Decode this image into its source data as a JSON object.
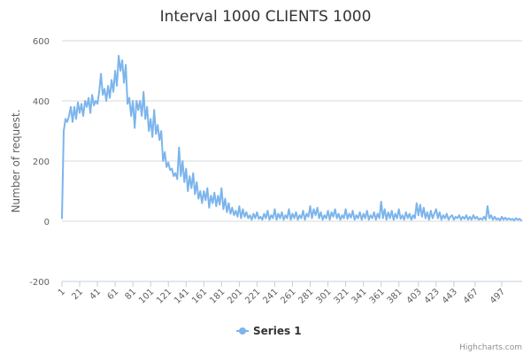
{
  "chart_data": {
    "type": "line",
    "title": "Interval 1000 CLIENTS 1000",
    "ylabel": "Number of request.",
    "xlabel": "",
    "ylim": [
      -200,
      600
    ],
    "yticks": [
      -200,
      0,
      200,
      400,
      600
    ],
    "xlim": [
      1,
      520
    ],
    "xticks": [
      1,
      21,
      41,
      61,
      81,
      101,
      121,
      141,
      161,
      181,
      201,
      221,
      241,
      261,
      281,
      301,
      321,
      341,
      361,
      381,
      403,
      423,
      443,
      467,
      497
    ],
    "grid": true,
    "legend_position": "bottom",
    "series": [
      {
        "name": "Series 1",
        "color": "#7cb5ec",
        "points": [
          [
            1,
            10
          ],
          [
            3,
            300
          ],
          [
            5,
            340
          ],
          [
            7,
            330
          ],
          [
            9,
            350
          ],
          [
            11,
            380
          ],
          [
            13,
            330
          ],
          [
            15,
            380
          ],
          [
            17,
            340
          ],
          [
            19,
            395
          ],
          [
            21,
            360
          ],
          [
            23,
            390
          ],
          [
            25,
            350
          ],
          [
            27,
            400
          ],
          [
            29,
            380
          ],
          [
            31,
            410
          ],
          [
            33,
            360
          ],
          [
            35,
            420
          ],
          [
            37,
            385
          ],
          [
            39,
            400
          ],
          [
            41,
            390
          ],
          [
            43,
            430
          ],
          [
            45,
            490
          ],
          [
            47,
            420
          ],
          [
            49,
            440
          ],
          [
            51,
            400
          ],
          [
            53,
            450
          ],
          [
            55,
            410
          ],
          [
            57,
            470
          ],
          [
            59,
            430
          ],
          [
            61,
            500
          ],
          [
            63,
            450
          ],
          [
            65,
            550
          ],
          [
            67,
            500
          ],
          [
            69,
            535
          ],
          [
            71,
            460
          ],
          [
            73,
            520
          ],
          [
            75,
            390
          ],
          [
            77,
            410
          ],
          [
            79,
            350
          ],
          [
            81,
            400
          ],
          [
            83,
            310
          ],
          [
            85,
            400
          ],
          [
            87,
            370
          ],
          [
            89,
            400
          ],
          [
            91,
            350
          ],
          [
            93,
            430
          ],
          [
            95,
            340
          ],
          [
            97,
            380
          ],
          [
            99,
            300
          ],
          [
            101,
            340
          ],
          [
            103,
            280
          ],
          [
            105,
            370
          ],
          [
            107,
            290
          ],
          [
            109,
            320
          ],
          [
            111,
            270
          ],
          [
            113,
            300
          ],
          [
            115,
            200
          ],
          [
            117,
            230
          ],
          [
            119,
            180
          ],
          [
            121,
            195
          ],
          [
            123,
            170
          ],
          [
            125,
            175
          ],
          [
            127,
            150
          ],
          [
            129,
            160
          ],
          [
            131,
            140
          ],
          [
            133,
            245
          ],
          [
            135,
            150
          ],
          [
            137,
            200
          ],
          [
            139,
            130
          ],
          [
            141,
            175
          ],
          [
            143,
            100
          ],
          [
            145,
            150
          ],
          [
            147,
            110
          ],
          [
            149,
            160
          ],
          [
            151,
            90
          ],
          [
            153,
            130
          ],
          [
            155,
            75
          ],
          [
            157,
            100
          ],
          [
            159,
            60
          ],
          [
            161,
            100
          ],
          [
            163,
            70
          ],
          [
            165,
            110
          ],
          [
            167,
            45
          ],
          [
            169,
            85
          ],
          [
            171,
            60
          ],
          [
            173,
            95
          ],
          [
            175,
            50
          ],
          [
            177,
            85
          ],
          [
            179,
            55
          ],
          [
            181,
            110
          ],
          [
            183,
            40
          ],
          [
            185,
            75
          ],
          [
            187,
            30
          ],
          [
            189,
            60
          ],
          [
            191,
            25
          ],
          [
            193,
            45
          ],
          [
            195,
            20
          ],
          [
            197,
            35
          ],
          [
            199,
            15
          ],
          [
            201,
            50
          ],
          [
            203,
            10
          ],
          [
            205,
            40
          ],
          [
            207,
            15
          ],
          [
            209,
            30
          ],
          [
            211,
            10
          ],
          [
            213,
            20
          ],
          [
            215,
            5
          ],
          [
            217,
            25
          ],
          [
            219,
            10
          ],
          [
            221,
            30
          ],
          [
            223,
            8
          ],
          [
            225,
            15
          ],
          [
            227,
            5
          ],
          [
            229,
            25
          ],
          [
            231,
            10
          ],
          [
            233,
            35
          ],
          [
            235,
            5
          ],
          [
            237,
            20
          ],
          [
            239,
            10
          ],
          [
            241,
            40
          ],
          [
            243,
            5
          ],
          [
            245,
            25
          ],
          [
            247,
            10
          ],
          [
            249,
            30
          ],
          [
            251,
            5
          ],
          [
            253,
            20
          ],
          [
            255,
            10
          ],
          [
            257,
            40
          ],
          [
            259,
            5
          ],
          [
            261,
            25
          ],
          [
            263,
            10
          ],
          [
            265,
            30
          ],
          [
            267,
            5
          ],
          [
            269,
            20
          ],
          [
            271,
            10
          ],
          [
            273,
            35
          ],
          [
            275,
            5
          ],
          [
            277,
            25
          ],
          [
            279,
            15
          ],
          [
            281,
            50
          ],
          [
            283,
            10
          ],
          [
            285,
            40
          ],
          [
            287,
            20
          ],
          [
            289,
            45
          ],
          [
            291,
            10
          ],
          [
            293,
            30
          ],
          [
            295,
            5
          ],
          [
            297,
            20
          ],
          [
            299,
            10
          ],
          [
            301,
            35
          ],
          [
            303,
            5
          ],
          [
            305,
            30
          ],
          [
            307,
            15
          ],
          [
            309,
            40
          ],
          [
            311,
            10
          ],
          [
            313,
            25
          ],
          [
            315,
            5
          ],
          [
            317,
            20
          ],
          [
            319,
            10
          ],
          [
            321,
            40
          ],
          [
            323,
            8
          ],
          [
            325,
            25
          ],
          [
            327,
            12
          ],
          [
            329,
            35
          ],
          [
            331,
            5
          ],
          [
            333,
            20
          ],
          [
            335,
            10
          ],
          [
            337,
            30
          ],
          [
            339,
            5
          ],
          [
            341,
            25
          ],
          [
            343,
            10
          ],
          [
            345,
            35
          ],
          [
            347,
            5
          ],
          [
            349,
            20
          ],
          [
            351,
            10
          ],
          [
            353,
            30
          ],
          [
            355,
            5
          ],
          [
            357,
            25
          ],
          [
            359,
            10
          ],
          [
            361,
            65
          ],
          [
            363,
            10
          ],
          [
            365,
            40
          ],
          [
            367,
            5
          ],
          [
            369,
            30
          ],
          [
            371,
            10
          ],
          [
            373,
            35
          ],
          [
            375,
            5
          ],
          [
            377,
            25
          ],
          [
            379,
            10
          ],
          [
            381,
            40
          ],
          [
            383,
            8
          ],
          [
            385,
            20
          ],
          [
            387,
            5
          ],
          [
            389,
            30
          ],
          [
            391,
            10
          ],
          [
            393,
            25
          ],
          [
            395,
            5
          ],
          [
            397,
            20
          ],
          [
            399,
            10
          ],
          [
            401,
            60
          ],
          [
            403,
            20
          ],
          [
            405,
            55
          ],
          [
            407,
            15
          ],
          [
            409,
            45
          ],
          [
            411,
            10
          ],
          [
            413,
            30
          ],
          [
            415,
            5
          ],
          [
            417,
            35
          ],
          [
            419,
            10
          ],
          [
            421,
            25
          ],
          [
            423,
            40
          ],
          [
            425,
            10
          ],
          [
            427,
            30
          ],
          [
            429,
            5
          ],
          [
            431,
            20
          ],
          [
            433,
            10
          ],
          [
            435,
            25
          ],
          [
            437,
            5
          ],
          [
            439,
            15
          ],
          [
            441,
            20
          ],
          [
            443,
            5
          ],
          [
            445,
            15
          ],
          [
            447,
            10
          ],
          [
            449,
            20
          ],
          [
            451,
            5
          ],
          [
            453,
            15
          ],
          [
            455,
            8
          ],
          [
            457,
            20
          ],
          [
            459,
            5
          ],
          [
            461,
            15
          ],
          [
            463,
            5
          ],
          [
            465,
            20
          ],
          [
            467,
            8
          ],
          [
            469,
            15
          ],
          [
            471,
            5
          ],
          [
            473,
            10
          ],
          [
            475,
            5
          ],
          [
            477,
            15
          ],
          [
            479,
            5
          ],
          [
            481,
            50
          ],
          [
            483,
            10
          ],
          [
            485,
            20
          ],
          [
            487,
            5
          ],
          [
            489,
            15
          ],
          [
            491,
            5
          ],
          [
            493,
            10
          ],
          [
            495,
            3
          ],
          [
            497,
            15
          ],
          [
            499,
            5
          ],
          [
            501,
            12
          ],
          [
            503,
            5
          ],
          [
            505,
            10
          ],
          [
            507,
            5
          ],
          [
            509,
            8
          ],
          [
            511,
            3
          ],
          [
            513,
            10
          ],
          [
            515,
            5
          ],
          [
            517,
            8
          ],
          [
            519,
            3
          ]
        ]
      }
    ]
  },
  "legend": {
    "label": "Series 1"
  },
  "credits": {
    "text": "Highcharts.com"
  }
}
